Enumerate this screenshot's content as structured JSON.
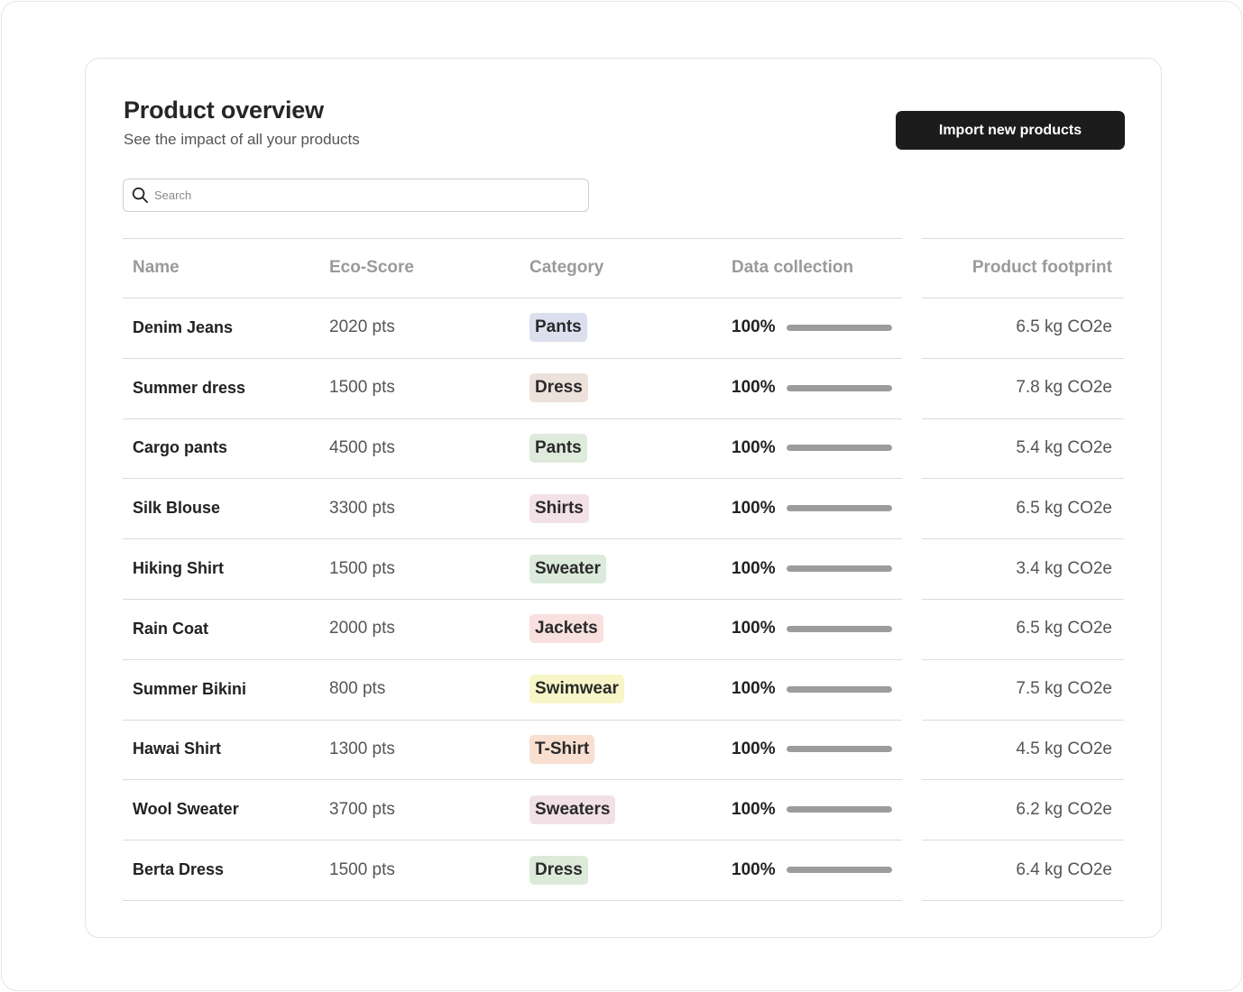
{
  "header": {
    "title": "Product overview",
    "subtitle": "See the impact of all your products",
    "import_label": "Import new products"
  },
  "search": {
    "placeholder": "Search",
    "value": ""
  },
  "table": {
    "columns": [
      "Name",
      "Eco-Score",
      "Category",
      "Data collection",
      "Product footprint"
    ],
    "rows": [
      {
        "name": "Denim Jeans",
        "score": "2020 pts",
        "category": "Pants",
        "category_color": "#dcdfee",
        "collection": "100%",
        "collection_value": 1.0,
        "footprint": "6.5 kg CO2e"
      },
      {
        "name": "Summer dress",
        "score": "1500 pts",
        "category": "Dress",
        "category_color": "#ece1db",
        "collection": "100%",
        "collection_value": 1.0,
        "footprint": "7.8 kg CO2e"
      },
      {
        "name": "Cargo pants",
        "score": "4500 pts",
        "category": "Pants",
        "category_color": "#deeadb",
        "collection": "100%",
        "collection_value": 1.0,
        "footprint": "5.4 kg CO2e"
      },
      {
        "name": "Silk Blouse",
        "score": "3300 pts",
        "category": "Shirts",
        "category_color": "#f2e1e7",
        "collection": "100%",
        "collection_value": 1.0,
        "footprint": "6.5 kg CO2e"
      },
      {
        "name": "Hiking Shirt",
        "score": "1500 pts",
        "category": "Sweater",
        "category_color": "#dbeadb",
        "collection": "100%",
        "collection_value": 1.0,
        "footprint": "3.4 kg CO2e"
      },
      {
        "name": "Rain Coat",
        "score": "2000 pts",
        "category": "Jackets",
        "category_color": "#f8e0de",
        "collection": "100%",
        "collection_value": 1.0,
        "footprint": "6.5 kg CO2e"
      },
      {
        "name": "Summer Bikini",
        "score": "800 pts",
        "category": "Swimwear",
        "category_color": "#f6f6c8",
        "collection": "100%",
        "collection_value": 1.0,
        "footprint": "7.5 kg CO2e"
      },
      {
        "name": "Hawai Shirt",
        "score": "1300 pts",
        "category": "T-Shirt",
        "category_color": "#f8dfcf",
        "collection": "100%",
        "collection_value": 1.0,
        "footprint": "4.5 kg CO2e"
      },
      {
        "name": "Wool Sweater",
        "score": "3700 pts",
        "category": "Sweaters",
        "category_color": "#f1e1e7",
        "collection": "100%",
        "collection_value": 1.0,
        "footprint": "6.2 kg CO2e"
      },
      {
        "name": "Berta Dress",
        "score": "1500 pts",
        "category": "Dress",
        "category_color": "#dcebd9",
        "collection": "100%",
        "collection_value": 1.0,
        "footprint": "6.4 kg CO2e"
      }
    ]
  }
}
